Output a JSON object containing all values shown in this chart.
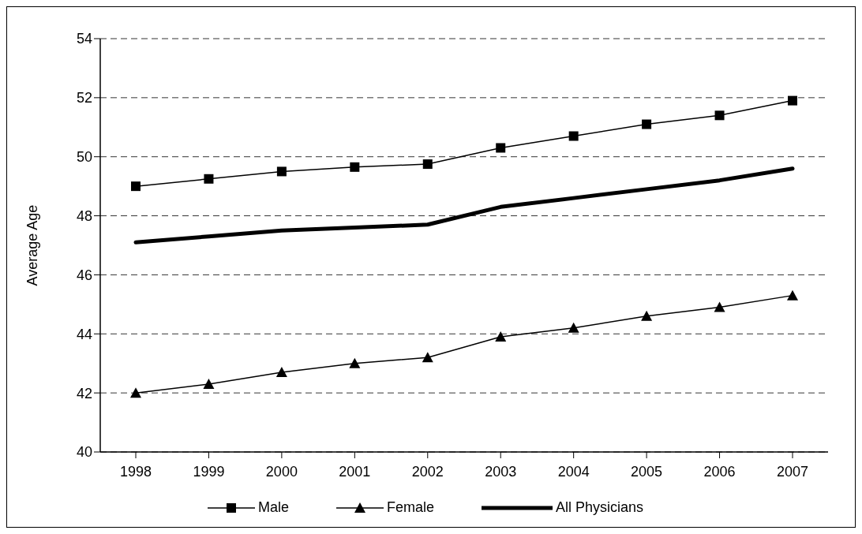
{
  "chart_data": {
    "type": "line",
    "ylabel": "Average Age",
    "categories": [
      "1998",
      "1999",
      "2000",
      "2001",
      "2002",
      "2003",
      "2004",
      "2005",
      "2006",
      "2007"
    ],
    "series": [
      {
        "name": "Male",
        "color": "#000000",
        "marker": "square",
        "values": [
          49.0,
          49.25,
          49.5,
          49.65,
          49.75,
          50.3,
          50.7,
          51.1,
          51.4,
          51.9
        ]
      },
      {
        "name": "Female",
        "color": "#000000",
        "marker": "triangle",
        "values": [
          42.0,
          42.3,
          42.7,
          43.0,
          43.2,
          43.9,
          44.2,
          44.6,
          44.9,
          45.3
        ]
      },
      {
        "name": "All Physicians",
        "color": "#000000",
        "marker": "none",
        "values": [
          47.1,
          47.3,
          47.5,
          47.6,
          47.7,
          48.3,
          48.6,
          48.9,
          49.2,
          49.6
        ]
      }
    ],
    "ylim": [
      40,
      54
    ],
    "yticks": [
      40,
      42,
      44,
      46,
      48,
      50,
      52,
      54
    ],
    "grid": "y",
    "legend": "bottom",
    "line_style": "solid"
  }
}
